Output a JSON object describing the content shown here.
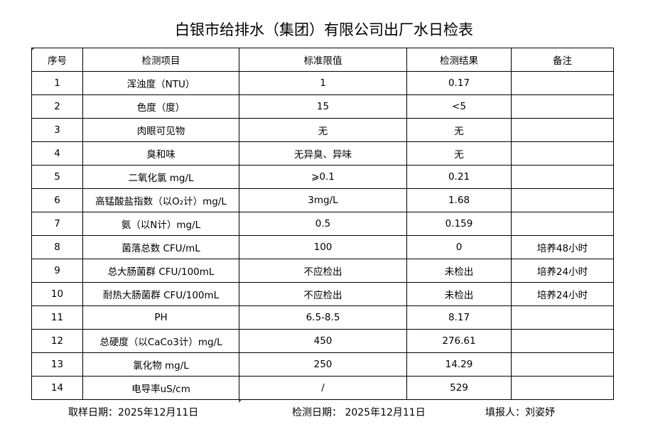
{
  "title": "白银市给排水（集团）有限公司出厂水日检表",
  "headers": [
    "序号",
    "检测项目",
    "标准限值",
    "检测结果",
    "备注"
  ],
  "rows": [
    [
      "1",
      "浑浊度（NTU）",
      "1",
      "0.17",
      ""
    ],
    [
      "2",
      "色度（度）",
      "15",
      "<5",
      ""
    ],
    [
      "3",
      "肉眼可见物",
      "无",
      "无",
      ""
    ],
    [
      "4",
      "臭和味",
      "无异臭、异味",
      "无",
      ""
    ],
    [
      "5",
      "二氧化氯 mg/L",
      "⩾0.1",
      "0.21",
      ""
    ],
    [
      "6",
      "高锰酸盐指数（以O₂计）mg/L",
      "3mg/L",
      "1.68",
      ""
    ],
    [
      "7",
      "氨（以N计）mg/L",
      "0.5",
      "0.159",
      ""
    ],
    [
      "8",
      "菌落总数 CFU/mL",
      "100",
      "0",
      "培养48小时"
    ],
    [
      "9",
      "总大肠菌群 CFU/100mL",
      "不应检出",
      "未检出",
      "培养24小时"
    ],
    [
      "10",
      "耐热大肠菌群 CFU/100mL",
      "不应检出",
      "未检出",
      "培养24小时"
    ],
    [
      "11",
      "PH",
      "6.5-8.5",
      "8.17",
      ""
    ],
    [
      "12",
      "总硬度（以CaCo3计）mg/L",
      "450",
      "276.61",
      ""
    ],
    [
      "13",
      "氯化物 mg/L",
      "250",
      "14.29",
      ""
    ],
    [
      "14",
      "电导率uS/cm",
      "/",
      "529",
      ""
    ]
  ],
  "footer": {
    "sampling_date": "取样日期：2025年12月11日",
    "test_date": "检测日期：  2025年12月11日",
    "reporter": "填报人：刘姿妤"
  }
}
